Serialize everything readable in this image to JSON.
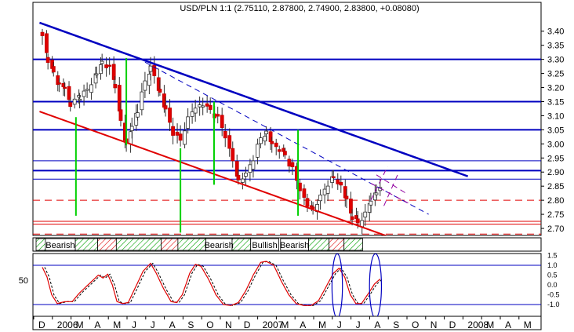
{
  "chart_data": {
    "type": "candlestick",
    "title": "USD/PLN 1:1 (2.75110, 2.87800, 2.74900, 2.83800, +0.08080)",
    "price_ticks": [
      "3.40",
      "3.35",
      "3.30",
      "3.25",
      "3.20",
      "3.15",
      "3.10",
      "3.05",
      "3.00",
      "2.95",
      "2.90",
      "2.85",
      "2.80",
      "2.75",
      "2.70"
    ],
    "price_ylim": [
      2.675,
      3.455
    ],
    "x_labels": [
      "D",
      "2006",
      "M",
      "A",
      "M",
      "J",
      "J",
      "A",
      "S",
      "O",
      "N",
      "D",
      "2007",
      "M",
      "A",
      "M",
      "J",
      "J",
      "A",
      "S",
      "O",
      "N",
      "D",
      "2008",
      "M",
      "A",
      "M"
    ],
    "x_range": [
      0,
      26
    ],
    "oscillator_left_ticks": [
      "50"
    ],
    "oscillator_right_ticks": [
      "1.5",
      "1.0",
      "0.5",
      "0.0",
      "-0.5",
      "-1.0"
    ],
    "oscillator_ylim": [
      -1.6,
      1.6
    ],
    "oscillator_levels": [
      1.0,
      -1.0
    ],
    "band_labels": [
      {
        "text": "Bearish",
        "from": 0.5,
        "to": 2.1
      },
      {
        "text": "Bearish",
        "from": 9.1,
        "to": 10.5
      },
      {
        "text": "Bullish",
        "from": 11.5,
        "to": 13.0
      },
      {
        "text": "Bearish",
        "from": 13.1,
        "to": 14.6
      }
    ],
    "band_cells": [
      {
        "from": 0.0,
        "to": 0.5,
        "color": "#00a000"
      },
      {
        "from": 2.1,
        "to": 3.3,
        "color": "#00a000"
      },
      {
        "from": 3.3,
        "to": 4.3,
        "color": "#e00000"
      },
      {
        "from": 4.3,
        "to": 6.7,
        "color": "#00a000"
      },
      {
        "from": 6.7,
        "to": 7.6,
        "color": "#e00000"
      },
      {
        "from": 7.6,
        "to": 9.1,
        "color": "#00a000"
      },
      {
        "from": 10.5,
        "to": 11.5,
        "color": "#00a000"
      },
      {
        "from": 14.6,
        "to": 15.7,
        "color": "#00a000"
      },
      {
        "from": 15.7,
        "to": 16.5,
        "color": "#e00000"
      },
      {
        "from": 16.5,
        "to": 17.5,
        "color": "#00a000"
      }
    ],
    "horizontal_lines": [
      {
        "y": 3.3,
        "color": "#0000c0",
        "width": 2
      },
      {
        "y": 3.15,
        "color": "#0000c0",
        "width": 2
      },
      {
        "y": 3.05,
        "color": "#0000c0",
        "width": 2
      },
      {
        "y": 2.94,
        "color": "#0000c0",
        "width": 1
      },
      {
        "y": 2.905,
        "color": "#0000c0",
        "width": 2
      },
      {
        "y": 2.875,
        "color": "#0000c0",
        "width": 1
      },
      {
        "y": 2.725,
        "color": "#e00000",
        "width": 1
      },
      {
        "y": 2.715,
        "color": "#e00000",
        "width": 1
      }
    ],
    "dashed_lines": [
      {
        "y": 2.8,
        "color": "#e00000"
      },
      {
        "y": 2.68,
        "color": "#e00000"
      }
    ],
    "trend_lines": [
      {
        "x1": -0.15,
        "y1": 3.43,
        "x2": 22.8,
        "y2": 2.885,
        "color": "#0000c0",
        "width": 2.5,
        "dash": false
      },
      {
        "x1": 5.5,
        "y1": 3.29,
        "x2": 20.7,
        "y2": 2.75,
        "color": "#0000c0",
        "width": 1,
        "dash": true
      },
      {
        "x1": -0.15,
        "y1": 3.115,
        "x2": 18.8,
        "y2": 2.665,
        "color": "#e00000",
        "width": 2,
        "dash": false
      },
      {
        "x1": 17.6,
        "y1": 2.8,
        "x2": 18.5,
        "y2": 2.92,
        "color": "#9000a0",
        "width": 1,
        "dash": true
      },
      {
        "x1": 17.6,
        "y1": 2.86,
        "x2": 19.6,
        "y2": 2.79,
        "color": "#9000a0",
        "width": 1,
        "dash": true
      },
      {
        "x1": 18.3,
        "y1": 2.78,
        "x2": 19.1,
        "y2": 2.9,
        "color": "#9000a0",
        "width": 1,
        "dash": true
      },
      {
        "x1": 17.9,
        "y1": 2.89,
        "x2": 19.6,
        "y2": 2.82,
        "color": "#9000a0",
        "width": 1,
        "dash": true
      }
    ],
    "green_markers": [
      {
        "x": 1.8,
        "y1": 2.745,
        "y2": 3.095
      },
      {
        "x": 4.5,
        "y1": 2.995,
        "y2": 3.305
      },
      {
        "x": 7.4,
        "y1": 2.685,
        "y2": 2.985
      },
      {
        "x": 9.2,
        "y1": 2.855,
        "y2": 3.15
      },
      {
        "x": 13.7,
        "y1": 2.745,
        "y2": 3.05
      }
    ],
    "oscillator_ellipses": [
      {
        "cx": 15.8,
        "cy": -0.05,
        "rx": 0.28,
        "ry": 1.8
      },
      {
        "cx": 17.85,
        "cy": -0.05,
        "rx": 0.32,
        "ry": 1.8
      }
    ],
    "close_anchors": [
      [
        0.0,
        3.38
      ],
      [
        0.3,
        3.3
      ],
      [
        0.6,
        3.25
      ],
      [
        0.9,
        3.21
      ],
      [
        1.2,
        3.2
      ],
      [
        1.5,
        3.14
      ],
      [
        2.0,
        3.17
      ],
      [
        2.4,
        3.19
      ],
      [
        2.9,
        3.25
      ],
      [
        3.2,
        3.29
      ],
      [
        3.6,
        3.27
      ],
      [
        3.9,
        3.21
      ],
      [
        4.2,
        3.08
      ],
      [
        4.5,
        3.0
      ],
      [
        4.8,
        3.06
      ],
      [
        5.1,
        3.12
      ],
      [
        5.5,
        3.22
      ],
      [
        5.8,
        3.27
      ],
      [
        6.0,
        3.24
      ],
      [
        6.3,
        3.18
      ],
      [
        6.6,
        3.12
      ],
      [
        7.0,
        3.04
      ],
      [
        7.4,
        3.01
      ],
      [
        7.8,
        3.09
      ],
      [
        8.2,
        3.13
      ],
      [
        8.6,
        3.14
      ],
      [
        9.0,
        3.12
      ],
      [
        9.4,
        3.09
      ],
      [
        9.8,
        3.03
      ],
      [
        10.2,
        2.94
      ],
      [
        10.5,
        2.87
      ],
      [
        10.9,
        2.89
      ],
      [
        11.3,
        2.95
      ],
      [
        11.7,
        3.02
      ],
      [
        12.0,
        3.04
      ],
      [
        12.3,
        3.0
      ],
      [
        12.7,
        2.98
      ],
      [
        13.0,
        2.96
      ],
      [
        13.4,
        2.91
      ],
      [
        13.8,
        2.84
      ],
      [
        14.2,
        2.78
      ],
      [
        14.5,
        2.77
      ],
      [
        14.9,
        2.81
      ],
      [
        15.3,
        2.86
      ],
      [
        15.6,
        2.88
      ],
      [
        16.0,
        2.85
      ],
      [
        16.3,
        2.8
      ],
      [
        16.6,
        2.74
      ],
      [
        16.9,
        2.72
      ],
      [
        17.3,
        2.75
      ],
      [
        17.6,
        2.8
      ],
      [
        17.9,
        2.83
      ],
      [
        18.1,
        2.84
      ]
    ],
    "oscillator_anchors": [
      [
        0.0,
        0.9
      ],
      [
        0.25,
        0.4
      ],
      [
        0.5,
        -0.5
      ],
      [
        0.8,
        -0.95
      ],
      [
        1.2,
        -0.85
      ],
      [
        1.6,
        -0.85
      ],
      [
        2.0,
        -0.4
      ],
      [
        2.5,
        0.05
      ],
      [
        3.0,
        0.5
      ],
      [
        3.25,
        0.35
      ],
      [
        3.5,
        0.55
      ],
      [
        3.75,
        0.0
      ],
      [
        4.0,
        -0.85
      ],
      [
        4.3,
        -0.95
      ],
      [
        4.6,
        -0.9
      ],
      [
        5.0,
        -0.1
      ],
      [
        5.4,
        0.7
      ],
      [
        5.8,
        1.1
      ],
      [
        6.1,
        0.6
      ],
      [
        6.5,
        -0.2
      ],
      [
        6.9,
        -0.85
      ],
      [
        7.2,
        -0.9
      ],
      [
        7.5,
        -0.5
      ],
      [
        7.9,
        0.6
      ],
      [
        8.2,
        1.05
      ],
      [
        8.5,
        0.95
      ],
      [
        8.9,
        0.3
      ],
      [
        9.3,
        -0.5
      ],
      [
        9.7,
        -1.0
      ],
      [
        10.1,
        -1.05
      ],
      [
        10.5,
        -0.9
      ],
      [
        10.9,
        -0.3
      ],
      [
        11.3,
        0.5
      ],
      [
        11.7,
        1.15
      ],
      [
        12.0,
        1.2
      ],
      [
        12.4,
        1.0
      ],
      [
        12.8,
        0.2
      ],
      [
        13.2,
        -0.5
      ],
      [
        13.6,
        -0.95
      ],
      [
        14.0,
        -1.05
      ],
      [
        14.4,
        -1.05
      ],
      [
        14.8,
        -0.8
      ],
      [
        15.2,
        -0.1
      ],
      [
        15.6,
        0.6
      ],
      [
        15.9,
        0.85
      ],
      [
        16.2,
        0.4
      ],
      [
        16.5,
        -0.5
      ],
      [
        16.8,
        -0.95
      ],
      [
        17.1,
        -0.95
      ],
      [
        17.5,
        -0.4
      ],
      [
        17.8,
        0.05
      ],
      [
        18.1,
        0.3
      ]
    ]
  }
}
